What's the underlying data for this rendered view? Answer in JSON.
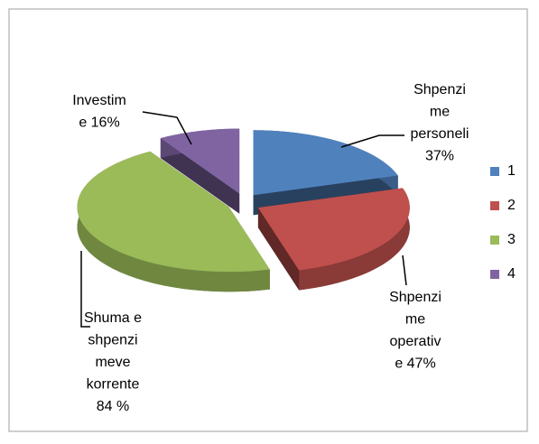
{
  "chart_data": {
    "type": "pie",
    "categories": [
      "1",
      "2",
      "3",
      "4"
    ],
    "values": [
      37,
      47,
      84,
      16
    ],
    "value_labels": [
      [
        "Shpenzi",
        "me",
        "personeli",
        "37%"
      ],
      [
        "Shpenzi",
        "me",
        "operativ",
        "e 47%"
      ],
      [
        "Shuma e",
        "shpenzi",
        "meve",
        "korrente",
        "84 %"
      ],
      [
        "Investim",
        "e 16%"
      ]
    ],
    "colors": [
      "#4f81bd",
      "#c0504d",
      "#9bbb59",
      "#8064a2"
    ],
    "legend": "right"
  }
}
